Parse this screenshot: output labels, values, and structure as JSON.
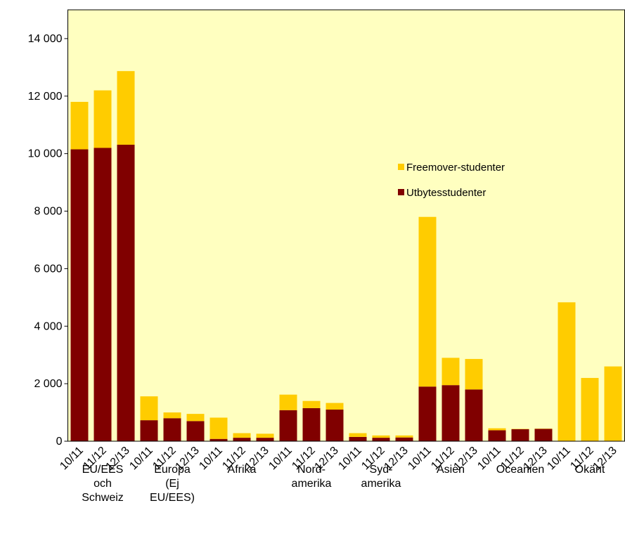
{
  "chart_data": {
    "type": "stacked_bar",
    "categories": [
      "10/11",
      "11/12",
      "12/13",
      "10/11",
      "11/12",
      "12/13",
      "10/11",
      "11/12",
      "12/13",
      "10/11",
      "11/12",
      "12/13",
      "10/11",
      "11/12",
      "12/13",
      "10/11",
      "11/12",
      "12/13",
      "10/11",
      "11/12",
      "12/13",
      "10/11",
      "11/12",
      "12/13"
    ],
    "groups": [
      [
        "EU/EES",
        "och",
        "Schweiz"
      ],
      [
        "Europa",
        "(Ej",
        "EU/EES)"
      ],
      [
        "Afrika"
      ],
      [
        "Nord-",
        "amerika"
      ],
      [
        "Syd-",
        "amerika"
      ],
      [
        "Asien"
      ],
      [
        "Oceanien"
      ],
      [
        "Okänt"
      ]
    ],
    "series": [
      {
        "name": "Utbytesstudenter",
        "color": "#800000",
        "values": [
          10150,
          10200,
          10310,
          730,
          800,
          700,
          80,
          120,
          120,
          1080,
          1150,
          1100,
          150,
          120,
          130,
          1900,
          1950,
          1800,
          380,
          420,
          430,
          0,
          0,
          0
        ]
      },
      {
        "name": "Freemover-studenter",
        "color": "#ffcc00",
        "values": [
          1650,
          2000,
          2560,
          830,
          200,
          250,
          740,
          160,
          140,
          540,
          250,
          230,
          130,
          80,
          70,
          5900,
          950,
          1060,
          70,
          10,
          10,
          4830,
          2200,
          2600
        ]
      }
    ],
    "ylim": [
      0,
      15000
    ],
    "yticks": [
      0,
      {
        "value": 2000,
        "label": "2 000"
      },
      {
        "value": 4000,
        "label": "4 000"
      },
      {
        "value": 6000,
        "label": "6 000"
      },
      {
        "value": 8000,
        "label": "8 000"
      },
      {
        "value": 10000,
        "label": "10 000"
      },
      {
        "value": 12000,
        "label": "12 000"
      },
      {
        "value": 14000,
        "label": "14 000"
      }
    ],
    "plot_background": "#ffffc0"
  }
}
